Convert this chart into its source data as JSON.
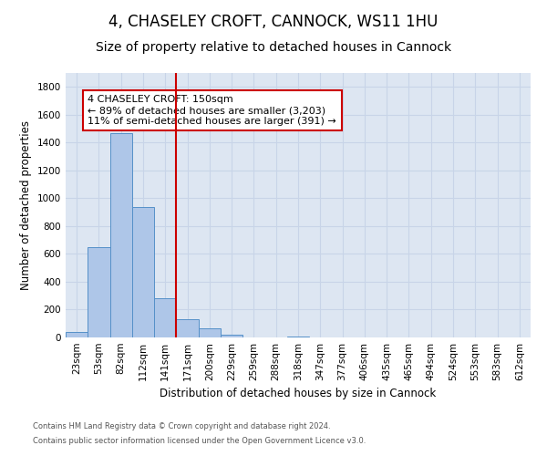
{
  "title": "4, CHASELEY CROFT, CANNOCK, WS11 1HU",
  "subtitle": "Size of property relative to detached houses in Cannock",
  "xlabel": "Distribution of detached houses by size in Cannock",
  "ylabel": "Number of detached properties",
  "footnote1": "Contains HM Land Registry data © Crown copyright and database right 2024.",
  "footnote2": "Contains public sector information licensed under the Open Government Licence v3.0.",
  "annotation_line1": "4 CHASELEY CROFT: 150sqm",
  "annotation_line2": "← 89% of detached houses are smaller (3,203)",
  "annotation_line3": "11% of semi-detached houses are larger (391) →",
  "bar_labels": [
    "23sqm",
    "53sqm",
    "82sqm",
    "112sqm",
    "141sqm",
    "171sqm",
    "200sqm",
    "229sqm",
    "259sqm",
    "288sqm",
    "318sqm",
    "347sqm",
    "377sqm",
    "406sqm",
    "435sqm",
    "465sqm",
    "494sqm",
    "524sqm",
    "553sqm",
    "583sqm",
    "612sqm"
  ],
  "bar_values": [
    40,
    650,
    1470,
    940,
    285,
    130,
    65,
    18,
    0,
    0,
    8,
    0,
    0,
    0,
    0,
    0,
    0,
    0,
    0,
    0,
    0
  ],
  "bar_color": "#aec6e8",
  "bar_edge_color": "#5590c8",
  "vline_x": 4.5,
  "vline_color": "#cc0000",
  "ylim": [
    0,
    1900
  ],
  "yticks": [
    0,
    200,
    400,
    600,
    800,
    1000,
    1200,
    1400,
    1600,
    1800
  ],
  "grid_color": "#c8d4e8",
  "bg_color": "#dde6f2",
  "title_fontsize": 12,
  "subtitle_fontsize": 10,
  "axis_label_fontsize": 8.5,
  "tick_fontsize": 7.5,
  "annotation_fontsize": 8,
  "footnote_fontsize": 6
}
